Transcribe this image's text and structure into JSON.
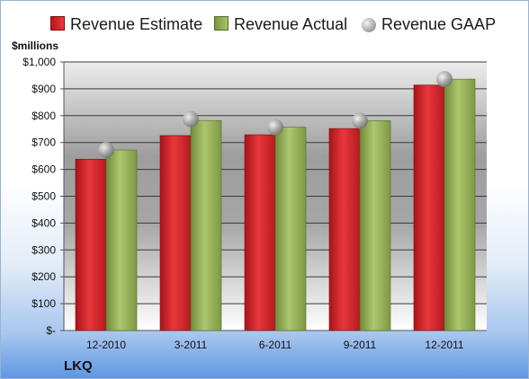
{
  "company": "LKQ",
  "legend": {
    "estimate": "Revenue Estimate",
    "actual": "Revenue Actual",
    "gaap": "Revenue GAAP"
  },
  "chart_data": {
    "type": "bar",
    "ylabel": "$millions",
    "xlabel": "",
    "categories": [
      "12-2010",
      "3-2011",
      "6-2011",
      "9-2011",
      "12-2011"
    ],
    "series": [
      {
        "name": "Revenue Estimate",
        "values": [
          638,
          726,
          729,
          752,
          914
        ]
      },
      {
        "name": "Revenue Actual",
        "values": [
          672,
          782,
          757,
          781,
          936
        ]
      },
      {
        "name": "Revenue GAAP",
        "values": [
          672,
          787,
          757,
          781,
          936
        ]
      }
    ],
    "ylim": [
      0,
      1000
    ],
    "yticks": [
      {
        "value": 0,
        "label": "$-"
      },
      {
        "value": 100,
        "label": "$100"
      },
      {
        "value": 200,
        "label": "$200"
      },
      {
        "value": 300,
        "label": "$300"
      },
      {
        "value": 400,
        "label": "$400"
      },
      {
        "value": 500,
        "label": "$500"
      },
      {
        "value": 600,
        "label": "$600"
      },
      {
        "value": 700,
        "label": "$700"
      },
      {
        "value": 800,
        "label": "$800"
      },
      {
        "value": 900,
        "label": "$900"
      },
      {
        "value": 1000,
        "label": "$1,000"
      }
    ],
    "grid": true,
    "legend_position": "top",
    "colors": {
      "estimate": "#d42328",
      "actual": "#93ac55",
      "gaap": "#b0b0b0"
    }
  }
}
